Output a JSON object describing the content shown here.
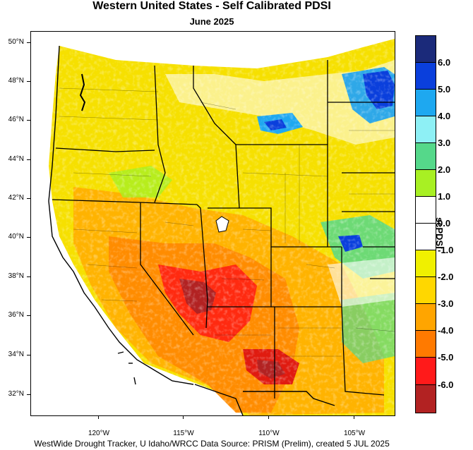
{
  "title": "Western United States - Self Calibrated PDSI",
  "subtitle": "June 2025",
  "footer": "WestWide Drought Tracker, U Idaho/WRCC Data Source: PRISM (Prelim), created  5 JUL 2025",
  "legend": {
    "title": "scPDSI",
    "labels": [
      "6.0",
      "5.0",
      "4.0",
      "3.0",
      "2.0",
      "1.0",
      "0.0",
      "-1.0",
      "-2.0",
      "-3.0",
      "-4.0",
      "-5.0",
      "-6.0"
    ],
    "colors": [
      "#1b2a7a",
      "#0a3fdc",
      "#1ea8f0",
      "#8ef0f5",
      "#55d88a",
      "#a8f023",
      "#ffffff",
      "#ffffff",
      "#f0f000",
      "#ffd700",
      "#ffa500",
      "#ff7a00",
      "#ff1a1a",
      "#b22222"
    ]
  },
  "map": {
    "lat_labels": [
      "50°N",
      "48°N",
      "46°N",
      "44°N",
      "42°N",
      "40°N",
      "38°N",
      "36°N",
      "34°N",
      "32°N"
    ],
    "lon_labels": [
      "120°W",
      "115°W",
      "110°W",
      "105°W"
    ]
  }
}
